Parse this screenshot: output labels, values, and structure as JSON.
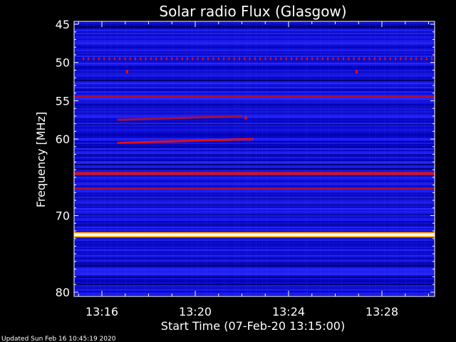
{
  "chart_data": {
    "type": "heatmap",
    "title": "Solar radio Flux (Glasgow)",
    "xlabel": "Start Time (07-Feb-20 13:15:00)",
    "ylabel": "Frequency [MHz]",
    "x_ticks": [
      "13:16",
      "13:20",
      "13:24",
      "13:28"
    ],
    "y_ticks": [
      45,
      50,
      55,
      60,
      70,
      80
    ],
    "xlim": [
      "13:15:00",
      "13:30:00"
    ],
    "ylim": [
      45,
      80
    ],
    "y_axis_direction": "downward-increasing",
    "colormap": [
      "#000080",
      "#0000ff",
      "#ff0000",
      "#ffff00",
      "#ffffff"
    ],
    "background_level": "blue",
    "features": [
      {
        "type": "continuous_band",
        "freq_mhz": 72.5,
        "level": "saturated-white/yellow"
      },
      {
        "type": "continuous_band",
        "freq_mhz": 64.5,
        "level": "red"
      },
      {
        "type": "continuous_band",
        "freq_mhz": 66.5,
        "level": "dark-red"
      },
      {
        "type": "continuous_band",
        "freq_mhz": 54.5,
        "level": "dark-red"
      },
      {
        "type": "periodic_dots",
        "freq_mhz": 49.5,
        "level": "red"
      },
      {
        "type": "drifting_band",
        "time_start": "13:16:40",
        "time_end": "13:22:30",
        "freq_start_mhz": 60.5,
        "freq_end_mhz": 60.0,
        "level": "red"
      },
      {
        "type": "drifting_band",
        "time_start": "13:16:40",
        "time_end": "13:22:00",
        "freq_start_mhz": 57.5,
        "freq_end_mhz": 57.0,
        "level": "dark-red"
      },
      {
        "type": "spike",
        "time": "13:17:05",
        "freq_mhz": 51.2,
        "level": "red"
      },
      {
        "type": "spike",
        "time": "13:26:55",
        "freq_mhz": 51.2,
        "level": "red"
      },
      {
        "type": "spike",
        "time": "13:22:10",
        "freq_mhz": 57.2,
        "level": "red"
      }
    ]
  },
  "footer": {
    "updated": "Updated Sun Feb 16 10:45:19 2020"
  }
}
